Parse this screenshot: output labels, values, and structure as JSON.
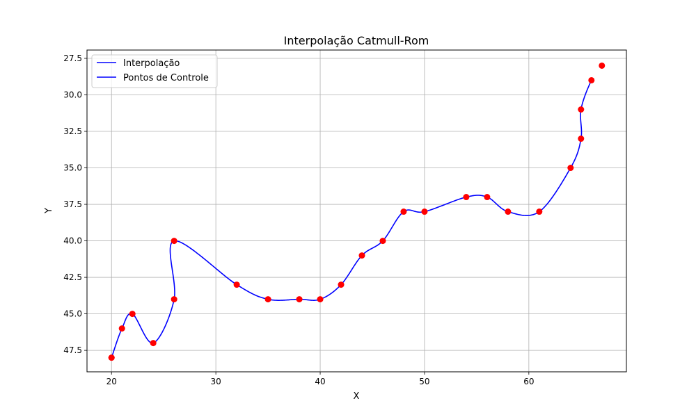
{
  "chart_data": {
    "type": "line",
    "title": "Interpolação Catmull-Rom",
    "xlabel": "X",
    "ylabel": "Y",
    "xlim": [
      17.65,
      69.35
    ],
    "ylim": [
      48.97,
      26.93
    ],
    "y_inverted": true,
    "grid": true,
    "legend_position": "top-left",
    "xticks": [
      20,
      30,
      40,
      50,
      60
    ],
    "yticks": [
      27.5,
      30.0,
      32.5,
      35.0,
      37.5,
      40.0,
      42.5,
      45.0,
      47.5
    ],
    "series": [
      {
        "name": "Interpolação",
        "kind": "line",
        "color": "#0000ff"
      },
      {
        "name": "Pontos de Controle",
        "kind": "line",
        "color": "#0000ff"
      }
    ],
    "control_points": {
      "color": "#ff0000",
      "x": [
        20,
        20,
        21,
        22,
        24,
        26,
        26,
        32,
        35,
        38,
        40,
        42,
        44,
        46,
        48,
        50,
        54,
        56,
        58,
        61,
        64,
        65,
        65,
        66,
        67
      ],
      "y": [
        48,
        48,
        46,
        45,
        47,
        44,
        40,
        43,
        44,
        44,
        44,
        43,
        41,
        40,
        38,
        38,
        37,
        37,
        38,
        38,
        35,
        33,
        31,
        29,
        28
      ]
    }
  }
}
